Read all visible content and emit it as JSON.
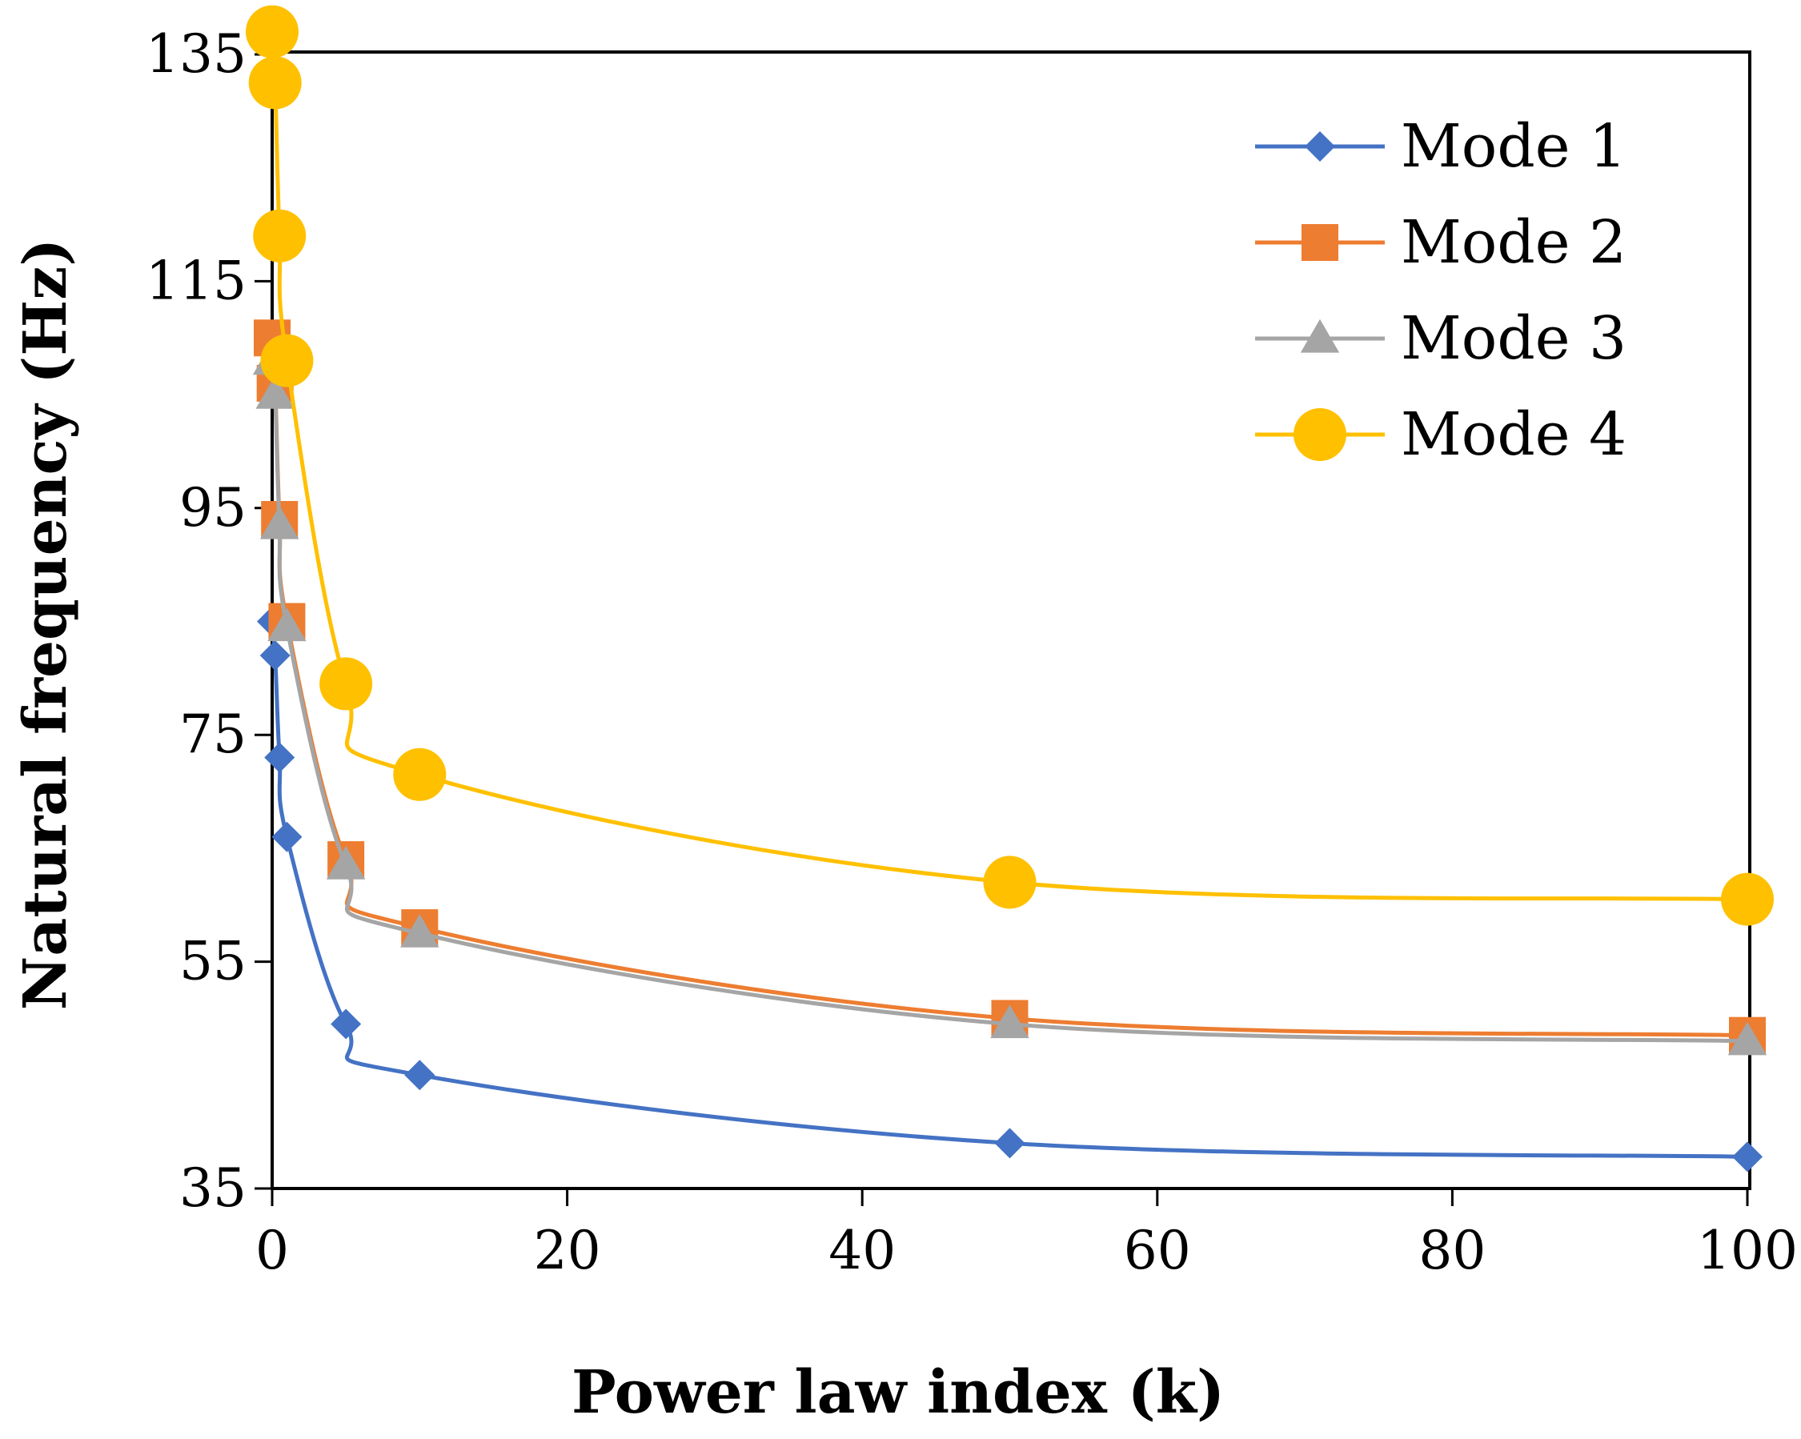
{
  "chart_data": {
    "type": "line",
    "title": "",
    "xlabel": "Power law index (k)",
    "ylabel": "Natural frequency (Hz)",
    "xlim": [
      0,
      100
    ],
    "ylim": [
      35,
      137
    ],
    "xticks": [
      0,
      20,
      40,
      60,
      80,
      100
    ],
    "xtick_labels": [
      "0",
      "20",
      "40",
      "60",
      "80",
      "100"
    ],
    "yticks": [
      35,
      55,
      75,
      95,
      115,
      135
    ],
    "ytick_labels": [
      "35",
      "55",
      "75",
      "95",
      "115",
      "135"
    ],
    "legend_position": "top-right",
    "grid": false,
    "series": [
      {
        "name": "Mode 1",
        "marker": "diamond",
        "color": "#4472C4",
        "x": [
          0,
          0.2,
          0.5,
          1,
          5,
          10,
          50,
          100
        ],
        "y": [
          85,
          82,
          73,
          66,
          49.5,
          45,
          39,
          37.8
        ]
      },
      {
        "name": "Mode 2",
        "marker": "square",
        "color": "#ED7D31",
        "x": [
          0,
          0.2,
          0.5,
          1,
          5,
          10,
          50,
          100
        ],
        "y": [
          110,
          106,
          94,
          85,
          64,
          58,
          50,
          48.5
        ]
      },
      {
        "name": "Mode 3",
        "marker": "triangle",
        "color": "#A5A5A5",
        "x": [
          0,
          0.2,
          0.5,
          1,
          5,
          10,
          50,
          100
        ],
        "y": [
          108,
          105,
          93.5,
          84.5,
          63.5,
          57.5,
          49.5,
          48
        ]
      },
      {
        "name": "Mode 4",
        "marker": "circle",
        "color": "#FFC000",
        "x": [
          0,
          0.2,
          0.5,
          1,
          5,
          10,
          50,
          100
        ],
        "y": [
          137,
          132.5,
          119,
          108,
          79.5,
          71.5,
          62,
          60.5
        ]
      }
    ]
  }
}
